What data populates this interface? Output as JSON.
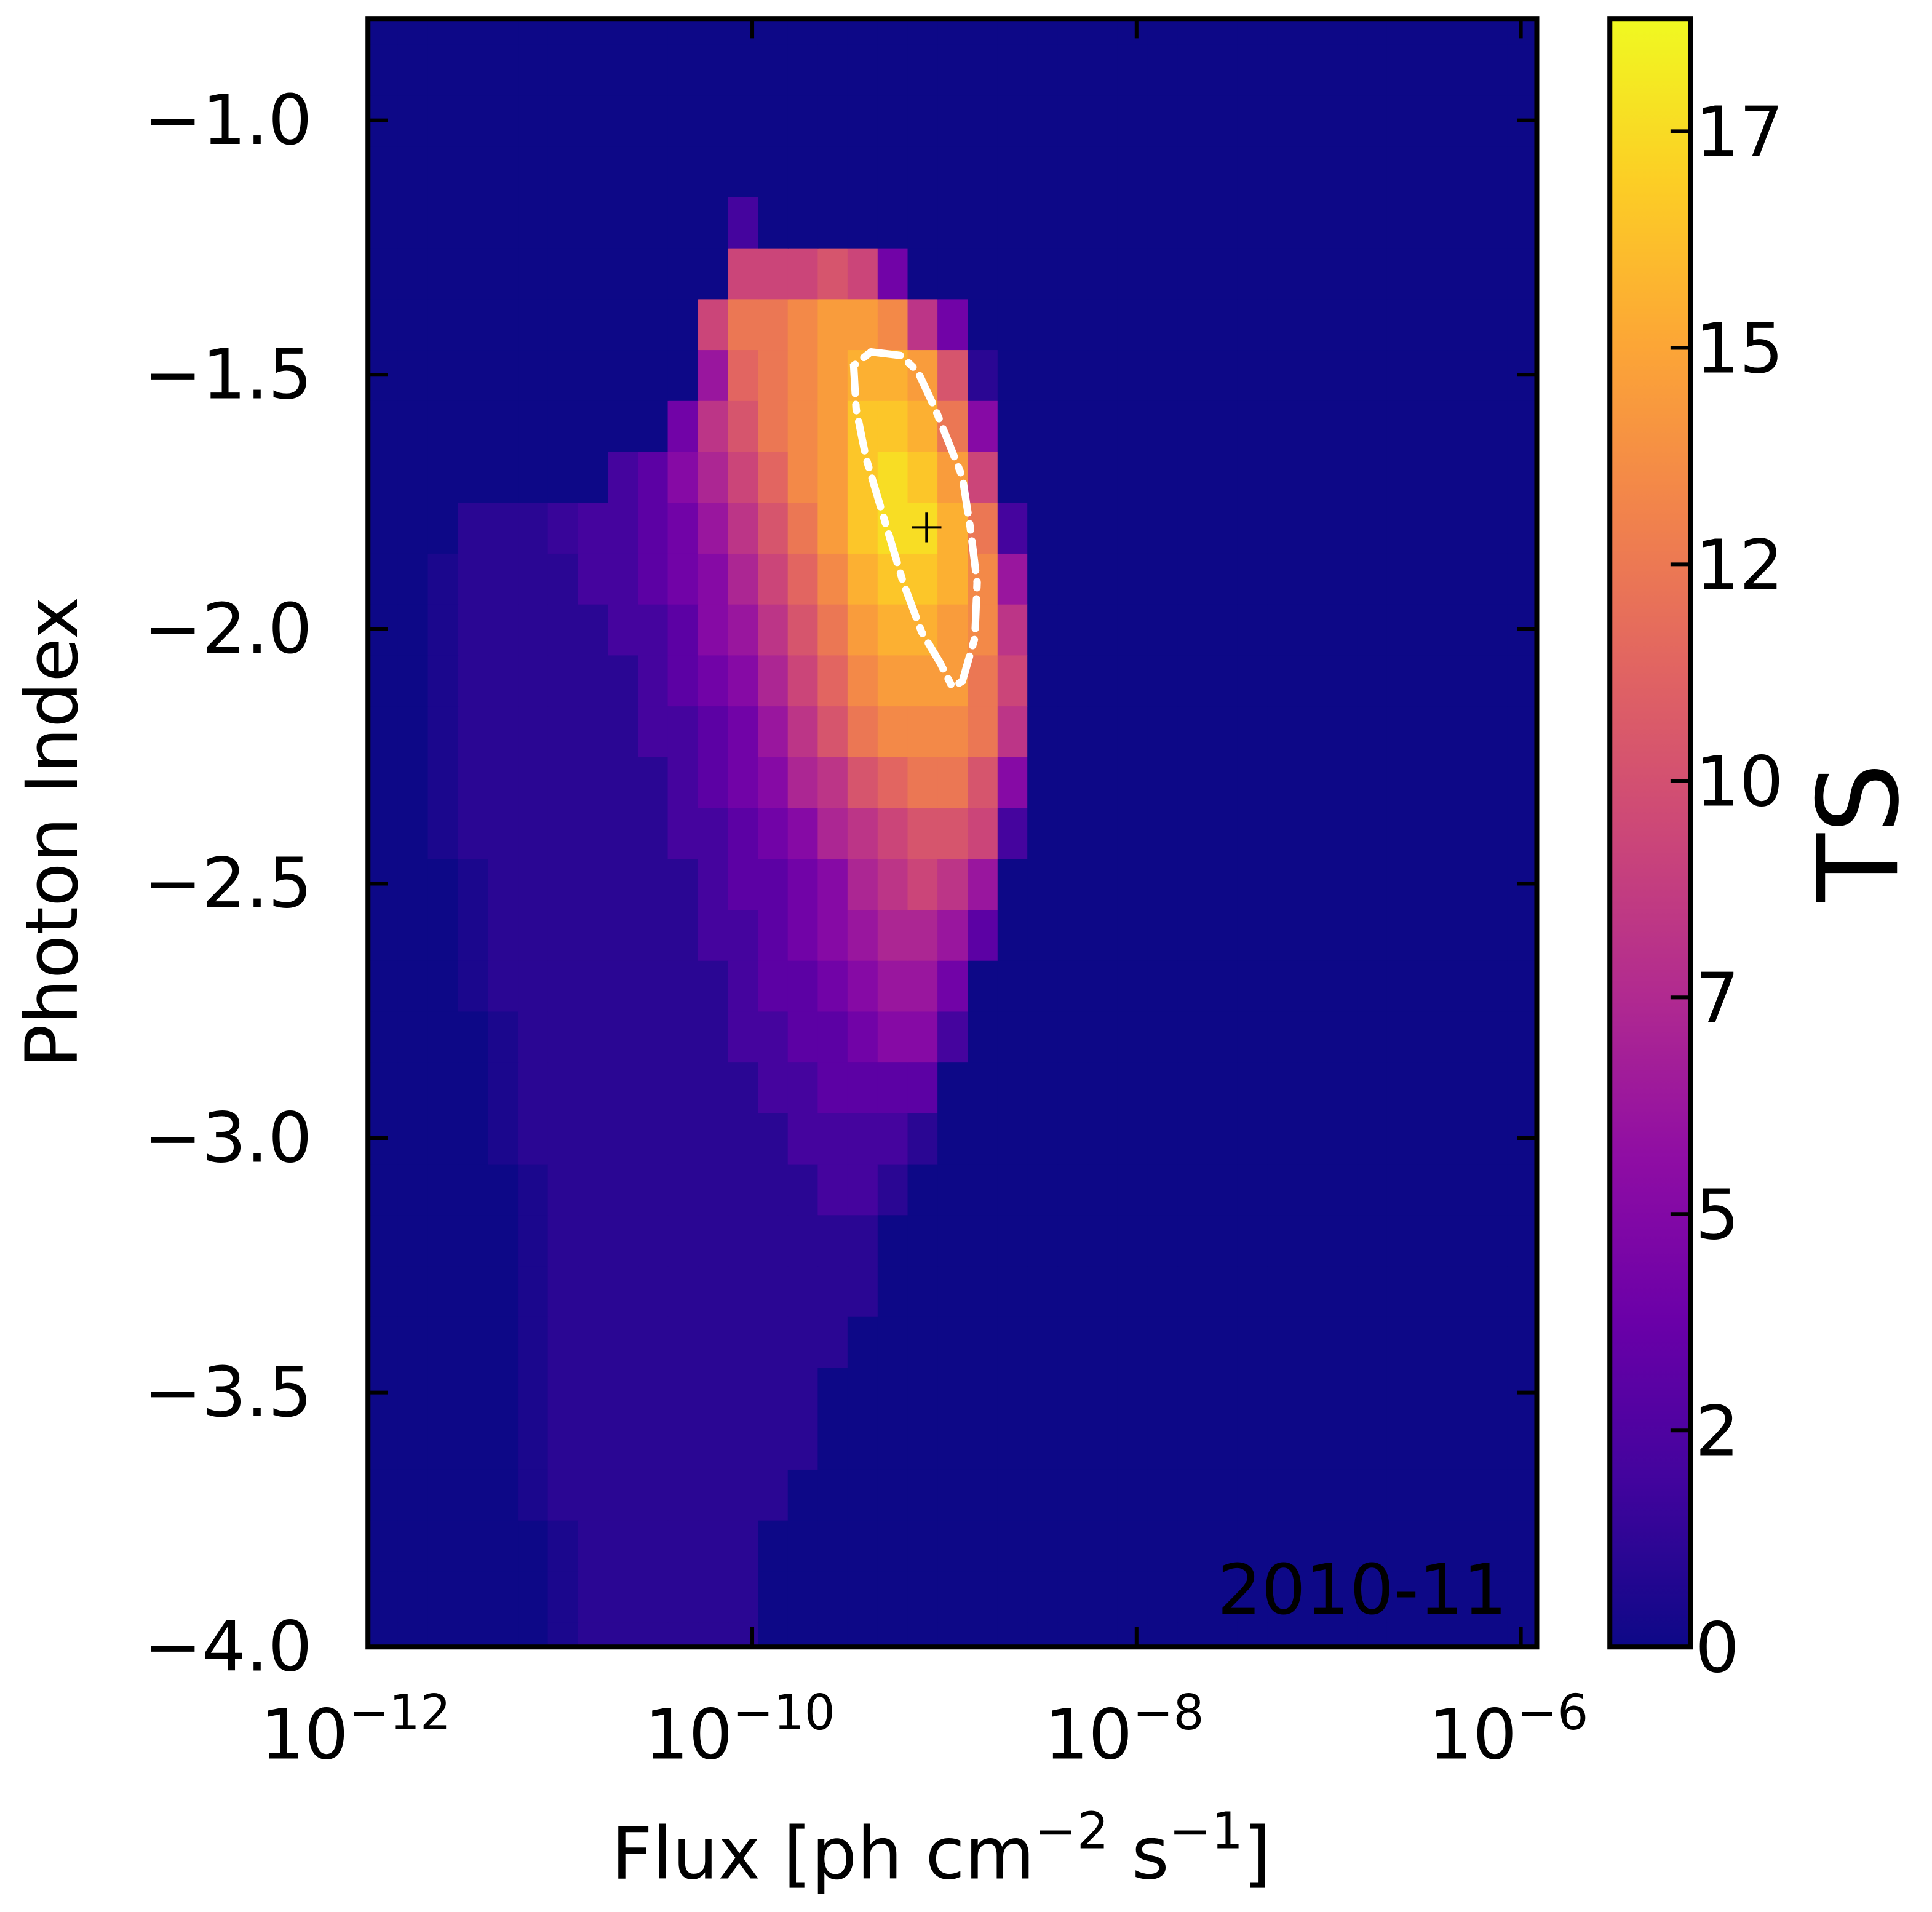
{
  "chart_data": {
    "type": "heatmap",
    "xlabel": "Flux [ph cm−2 s−1]",
    "ylabel": "Photon Index",
    "annotation": {
      "text": "2010-11",
      "color": "#ffffff"
    },
    "xscale": "log",
    "xlim": [
      1e-12,
      1.21e-06
    ],
    "ylim": [
      -4.0,
      -0.8
    ],
    "xticks": [
      {
        "value": 1e-12,
        "label": "10−12"
      },
      {
        "value": 1e-10,
        "label": "10−10"
      },
      {
        "value": 1e-08,
        "label": "10−8"
      },
      {
        "value": 1e-06,
        "label": "10−6"
      }
    ],
    "yticks": [
      {
        "value": -4.0,
        "label": "−4.0"
      },
      {
        "value": -3.5,
        "label": "−3.5"
      },
      {
        "value": -3.0,
        "label": "−3.0"
      },
      {
        "value": -2.5,
        "label": "−2.5"
      },
      {
        "value": -2.0,
        "label": "−2.0"
      },
      {
        "value": -1.5,
        "label": "−1.5"
      },
      {
        "value": -1.0,
        "label": "−1.0"
      }
    ],
    "xbins": [
      1e-12,
      1.43e-12,
      2.05e-12,
      2.94e-12,
      4.21e-12,
      6.03e-12,
      8.63e-12,
      1.24e-11,
      1.77e-11,
      2.54e-11,
      3.63e-11,
      5.2e-11,
      7.45e-11,
      1.07e-10,
      1.53e-10,
      2.19e-10,
      3.13e-10,
      4.49e-10,
      6.43e-10,
      9.2e-10,
      1.32e-09,
      1.89e-09,
      2.7e-09,
      3.87e-09,
      5.55e-09,
      7.94e-09,
      1.14e-08,
      1.63e-08,
      2.33e-08,
      3.34e-08,
      4.79e-08,
      6.85e-08,
      9.82e-08,
      1.41e-07,
      2.01e-07,
      2.88e-07,
      4.13e-07,
      5.92e-07,
      8.47e-07,
      1.21e-06
    ],
    "ybins": [
      -4.05,
      -3.95,
      -3.85,
      -3.75,
      -3.65,
      -3.55,
      -3.45,
      -3.35,
      -3.25,
      -3.15,
      -3.05,
      -2.95,
      -2.85,
      -2.75,
      -2.65,
      -2.55,
      -2.45,
      -2.35,
      -2.25,
      -2.15,
      -2.05,
      -1.95,
      -1.85,
      -1.75,
      -1.65,
      -1.55,
      -1.45,
      -1.35,
      -1.25,
      -1.15,
      -1.05,
      -0.95,
      -0.85,
      -0.75
    ],
    "z": [
      [
        0,
        0,
        0,
        0,
        0,
        0,
        0.5,
        1,
        1,
        1,
        1,
        1,
        1,
        0,
        0,
        0,
        0,
        0,
        0,
        0,
        0,
        0,
        0,
        0,
        0,
        0,
        0,
        0,
        0,
        0,
        0,
        0,
        0,
        0,
        0,
        0,
        0,
        0,
        0
      ],
      [
        0,
        0,
        0,
        0,
        0,
        0,
        0.5,
        1,
        1,
        1,
        1,
        1,
        1,
        0,
        0,
        0,
        0,
        0,
        0,
        0,
        0,
        0,
        0,
        0,
        0,
        0,
        0,
        0,
        0,
        0,
        0,
        0,
        0,
        0,
        0,
        0,
        0,
        0,
        0
      ],
      [
        0,
        0,
        0,
        0,
        0,
        0,
        0.5,
        1,
        1,
        1,
        1,
        1,
        1,
        0,
        0,
        0,
        0,
        0,
        0,
        0,
        0,
        0,
        0,
        0,
        0,
        0,
        0,
        0,
        0,
        0,
        0,
        0,
        0,
        0,
        0,
        0,
        0,
        0,
        0
      ],
      [
        0,
        0,
        0,
        0,
        0,
        0.5,
        1,
        1,
        1,
        1,
        1,
        1,
        1,
        1,
        0,
        0,
        0,
        0,
        0,
        0,
        0,
        0,
        0,
        0,
        0,
        0,
        0,
        0,
        0,
        0,
        0,
        0,
        0,
        0,
        0,
        0,
        0,
        0,
        0
      ],
      [
        0,
        0,
        0,
        0,
        0,
        0.5,
        1,
        1,
        1,
        1,
        1,
        1,
        1,
        1,
        1,
        0,
        0,
        0,
        0,
        0,
        0,
        0,
        0,
        0,
        0,
        0,
        0,
        0,
        0,
        0,
        0,
        0,
        0,
        0,
        0,
        0,
        0,
        0,
        0
      ],
      [
        0,
        0,
        0,
        0,
        0,
        0.5,
        1,
        1,
        1,
        1,
        1,
        1,
        1,
        1,
        1,
        0,
        0,
        0,
        0,
        0,
        0,
        0,
        0,
        0,
        0,
        0,
        0,
        0,
        0,
        0,
        0,
        0,
        0,
        0,
        0,
        0,
        0,
        0,
        0
      ],
      [
        0,
        0,
        0,
        0,
        0,
        0.5,
        1,
        1,
        1,
        1,
        1,
        1,
        1,
        1,
        1,
        1,
        0,
        0,
        0,
        0,
        0,
        0,
        0,
        0,
        0,
        0,
        0,
        0,
        0,
        0,
        0,
        0,
        0,
        0,
        0,
        0,
        0,
        0,
        0
      ],
      [
        0,
        0,
        0,
        0,
        0,
        0.5,
        1,
        1,
        1,
        1,
        1,
        1,
        1,
        1,
        1,
        1,
        1,
        0,
        0,
        0,
        0,
        0,
        0,
        0,
        0,
        0,
        0,
        0,
        0,
        0,
        0,
        0,
        0,
        0,
        0,
        0,
        0,
        0,
        0
      ],
      [
        0,
        0,
        0,
        0,
        0,
        0.5,
        1,
        1,
        1,
        1,
        1,
        1,
        1,
        1,
        1,
        1,
        1,
        0,
        0,
        0,
        0,
        0,
        0,
        0,
        0,
        0,
        0,
        0,
        0,
        0,
        0,
        0,
        0,
        0,
        0,
        0,
        0,
        0,
        0
      ],
      [
        0,
        0,
        0,
        0,
        0,
        0.5,
        1,
        1,
        1,
        1,
        1,
        1,
        1,
        1,
        1,
        2,
        2,
        1,
        0,
        0,
        0,
        0,
        0,
        0,
        0,
        0,
        0,
        0,
        0,
        0,
        0,
        0,
        0,
        0,
        0,
        0,
        0,
        0,
        0
      ],
      [
        0,
        0,
        0,
        0,
        0.5,
        1,
        1,
        1,
        1,
        1,
        1,
        1,
        1,
        1,
        2,
        2,
        2,
        2,
        1,
        0,
        0,
        0,
        0,
        0,
        0,
        0,
        0,
        0,
        0,
        0,
        0,
        0,
        0,
        0,
        0,
        0,
        0,
        0,
        0
      ],
      [
        0,
        0,
        0,
        0,
        0.5,
        1,
        1,
        1,
        1,
        1,
        1,
        1,
        1,
        2,
        2,
        3,
        3,
        3,
        3,
        0,
        0,
        0,
        0,
        0,
        0,
        0,
        0,
        0,
        0,
        0,
        0,
        0,
        0,
        0,
        0,
        0,
        0,
        0,
        0
      ],
      [
        0,
        0,
        0,
        0,
        0.5,
        1,
        1,
        1,
        1,
        1,
        1,
        1,
        2,
        2,
        3,
        3,
        4,
        5,
        5,
        2,
        0,
        0,
        0,
        0,
        0,
        0,
        0,
        0,
        0,
        0,
        0,
        0,
        0,
        0,
        0,
        0,
        0,
        0,
        0
      ],
      [
        0,
        0,
        0,
        0.5,
        1,
        1,
        1,
        1,
        1,
        1,
        1,
        1,
        2,
        3,
        3,
        4,
        5,
        6,
        6,
        4,
        0,
        0,
        0,
        0,
        0,
        0,
        0,
        0,
        0,
        0,
        0,
        0,
        0,
        0,
        0,
        0,
        0,
        0,
        0
      ],
      [
        0,
        0,
        0,
        0.5,
        1,
        1,
        1,
        1,
        1,
        1,
        1,
        2,
        2,
        3,
        4,
        5,
        6,
        7,
        7,
        6,
        3,
        0,
        0,
        0,
        0,
        0,
        0,
        0,
        0,
        0,
        0,
        0,
        0,
        0,
        0,
        0,
        0,
        0,
        0
      ],
      [
        0,
        0,
        0,
        0.5,
        1,
        1,
        1,
        1,
        1,
        1,
        1,
        2,
        3,
        3,
        4,
        5,
        7,
        8,
        9,
        8,
        6,
        0,
        0,
        0,
        0,
        0,
        0,
        0,
        0,
        0,
        0,
        0,
        0,
        0,
        0,
        0,
        0,
        0,
        0
      ],
      [
        0,
        0,
        0.5,
        1,
        1,
        1,
        1,
        1,
        1,
        1,
        2,
        2,
        3,
        4,
        5,
        7,
        8,
        9,
        10,
        10,
        9,
        2,
        0,
        0,
        0,
        0,
        0,
        0,
        0,
        0,
        0,
        0,
        0,
        0,
        0,
        0,
        0,
        0,
        0
      ],
      [
        0,
        0,
        0.5,
        1,
        1,
        1,
        1,
        1,
        1,
        1,
        2,
        3,
        4,
        5,
        7,
        8,
        10,
        11,
        12,
        12,
        10,
        5,
        0,
        0,
        0,
        0,
        0,
        0,
        0,
        0,
        0,
        0,
        0,
        0,
        0,
        0,
        0,
        0,
        0
      ],
      [
        0,
        0,
        0.5,
        1,
        1,
        1,
        1,
        1,
        1,
        2,
        2,
        3,
        4,
        6,
        8,
        10,
        12,
        13,
        13,
        13,
        12,
        8,
        0,
        0,
        0,
        0,
        0,
        0,
        0,
        0,
        0,
        0,
        0,
        0,
        0,
        0,
        0,
        0,
        0
      ],
      [
        0,
        0,
        0.5,
        1,
        1,
        1,
        1,
        1,
        1,
        2,
        3,
        4,
        5,
        7,
        9,
        11,
        13,
        14,
        14,
        14,
        12,
        9,
        0,
        0,
        0,
        0,
        0,
        0,
        0,
        0,
        0,
        0,
        0,
        0,
        0,
        0,
        0,
        0,
        0
      ],
      [
        0,
        0,
        0.5,
        1,
        1,
        1,
        1,
        1,
        2,
        2,
        3,
        5,
        6,
        8,
        10,
        12,
        14,
        15,
        15,
        14,
        13,
        8,
        0,
        0,
        0,
        0,
        0,
        0,
        0,
        0,
        0,
        0,
        0,
        0,
        0,
        0,
        0,
        0,
        0
      ],
      [
        0,
        0,
        0.5,
        1,
        1,
        1,
        1,
        2,
        2,
        3,
        4,
        5,
        7,
        9,
        11,
        13,
        15,
        16,
        16,
        15,
        13,
        6,
        0,
        0,
        0,
        0,
        0,
        0,
        0,
        0,
        0,
        0,
        0,
        0,
        0,
        0,
        0,
        0,
        0
      ],
      [
        0,
        0,
        0,
        1,
        1,
        1,
        1.5,
        2,
        2,
        3,
        4,
        6,
        8,
        10,
        12,
        14,
        16,
        17,
        17,
        15,
        12,
        2,
        0,
        0,
        0,
        0,
        0,
        0,
        0,
        0,
        0,
        0,
        0,
        0,
        0,
        0,
        0,
        0,
        0
      ],
      [
        0,
        0,
        0,
        0,
        0,
        0,
        0,
        0,
        2,
        3,
        5,
        7,
        9,
        11,
        13,
        14,
        16,
        17,
        16,
        14,
        9,
        0,
        0,
        0,
        0,
        0,
        0,
        0,
        0,
        0,
        0,
        0,
        0,
        0,
        0,
        0,
        0,
        0,
        0
      ],
      [
        0,
        0,
        0,
        0,
        0,
        0,
        0,
        0,
        0,
        0,
        4,
        8,
        10,
        12,
        13,
        14,
        16,
        16,
        15,
        12,
        5,
        0,
        0,
        0,
        0,
        0,
        0,
        0,
        0,
        0,
        0,
        0,
        0,
        0,
        0,
        0,
        0,
        0,
        0
      ],
      [
        0,
        0,
        0,
        0,
        0,
        0,
        0,
        0,
        0,
        0,
        0,
        6,
        11,
        12,
        13,
        14,
        15,
        15,
        14,
        10,
        1,
        0,
        0,
        0,
        0,
        0,
        0,
        0,
        0,
        0,
        0,
        0,
        0,
        0,
        0,
        0,
        0,
        0,
        0
      ],
      [
        0,
        0,
        0,
        0,
        0,
        0,
        0,
        0,
        0,
        0,
        0,
        9,
        12,
        12,
        13,
        14,
        14,
        13,
        8,
        4,
        0,
        0,
        0,
        0,
        0,
        0,
        0,
        0,
        0,
        0,
        0,
        0,
        0,
        0,
        0,
        0,
        0,
        0,
        0
      ],
      [
        0,
        0,
        0,
        0,
        0,
        0,
        0,
        0,
        0,
        0,
        0,
        0,
        9,
        9,
        9,
        10,
        9,
        4,
        0,
        0,
        0,
        0,
        0,
        0,
        0,
        0,
        0,
        0,
        0,
        0,
        0,
        0,
        0,
        0,
        0,
        0,
        0,
        0,
        0
      ],
      [
        0,
        0,
        0,
        0,
        0,
        0,
        0,
        0,
        0,
        0,
        0,
        0,
        2,
        0,
        0,
        0,
        0,
        0,
        0,
        0,
        0,
        0,
        0,
        0,
        0,
        0,
        0,
        0,
        0,
        0,
        0,
        0,
        0,
        0,
        0,
        0,
        0,
        0,
        0
      ],
      [
        0,
        0,
        0,
        0,
        0,
        0,
        0,
        0,
        0,
        0,
        0,
        0,
        0,
        0,
        0,
        0,
        0,
        0,
        0,
        0,
        0,
        0,
        0,
        0,
        0,
        0,
        0,
        0,
        0,
        0,
        0,
        0,
        0,
        0,
        0,
        0,
        0,
        0,
        0
      ],
      [
        0,
        0,
        0,
        0,
        0,
        0,
        0,
        0,
        0,
        0,
        0,
        0,
        0,
        0,
        0,
        0,
        0,
        0,
        0,
        0,
        0,
        0,
        0,
        0,
        0,
        0,
        0,
        0,
        0,
        0,
        0,
        0,
        0,
        0,
        0,
        0,
        0,
        0,
        0
      ],
      [
        0,
        0,
        0,
        0,
        0,
        0,
        0,
        0,
        0,
        0,
        0,
        0,
        0,
        0,
        0,
        0,
        0,
        0,
        0,
        0,
        0,
        0,
        0,
        0,
        0,
        0,
        0,
        0,
        0,
        0,
        0,
        0,
        0,
        0,
        0,
        0,
        0,
        0,
        0
      ],
      [
        0,
        0,
        0,
        0,
        0,
        0,
        0,
        0,
        0,
        0,
        0,
        0,
        0,
        0,
        0,
        0,
        0,
        0,
        0,
        0,
        0,
        0,
        0,
        0,
        0,
        0,
        0,
        0,
        0,
        0,
        0,
        0,
        0,
        0,
        0,
        0,
        0,
        0,
        0
      ]
    ],
    "colorbar": {
      "label": "TS",
      "colormap": "plasma",
      "zlim": [
        0,
        18.2
      ],
      "ticks": [
        {
          "value": 0,
          "label": "0"
        },
        {
          "value": 2.42,
          "label": "2"
        },
        {
          "value": 4.84,
          "label": "5"
        },
        {
          "value": 7.26,
          "label": "7"
        },
        {
          "value": 9.68,
          "label": "10"
        },
        {
          "value": 12.1,
          "label": "12"
        },
        {
          "value": 14.52,
          "label": "15"
        },
        {
          "value": 16.94,
          "label": "17"
        }
      ]
    },
    "contour": {
      "color": "#ffffff",
      "x": [
        4.14e-10,
        5.92e-10,
        7.28e-10,
        8.95e-10,
        1.07e-09,
        1.24e-09,
        1.36e-09,
        1.48e-09,
        1.44e-09,
        1.24e-09,
        1.1e-09,
        9.49e-10,
        7.6e-10,
        6.1e-10,
        4.88e-10,
        3.91e-10,
        3.47e-10,
        3.37e-10
      ],
      "y": [
        -1.455,
        -1.462,
        -1.494,
        -1.567,
        -1.64,
        -1.701,
        -1.798,
        -1.908,
        -2.017,
        -2.102,
        -2.114,
        -2.066,
        -2.005,
        -1.908,
        -1.786,
        -1.664,
        -1.567,
        -1.482
      ]
    },
    "marker": {
      "x": 8.07e-10,
      "y": -1.8,
      "color": "#000000"
    }
  }
}
